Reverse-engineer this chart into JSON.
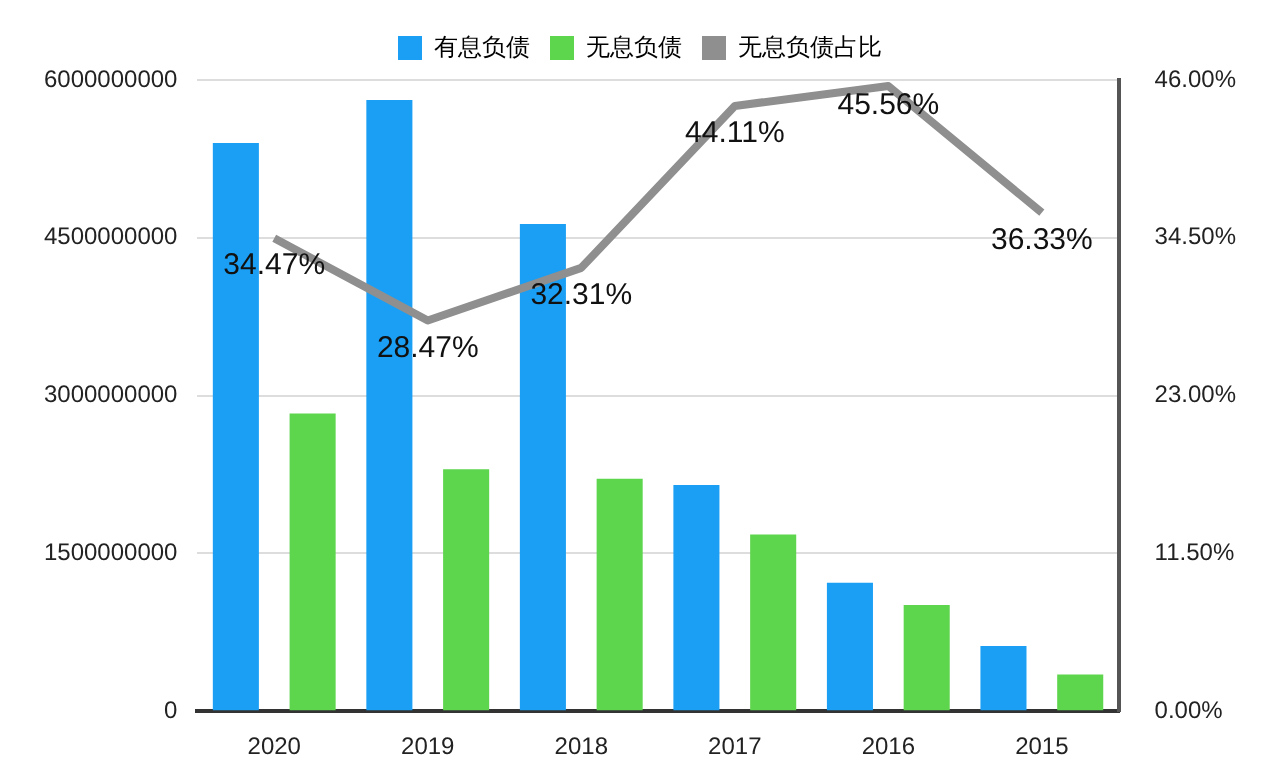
{
  "chart_data": {
    "type": "bar",
    "categories": [
      "2020",
      "2019",
      "2018",
      "2017",
      "2016",
      "2015"
    ],
    "series": [
      {
        "name": "有息负债",
        "color": "#1a9ff5",
        "values": [
          5400000000,
          5810000000,
          4630000000,
          2150000000,
          1220000000,
          620000000
        ]
      },
      {
        "name": "无息负债",
        "color": "#5dd54c",
        "values": [
          2830000000,
          2300000000,
          2210000000,
          1680000000,
          1010000000,
          350000000
        ]
      },
      {
        "name": "无息负债占比",
        "type": "line",
        "axis": "y2",
        "color": "#8f8f8f",
        "values": [
          34.47,
          28.47,
          32.31,
          44.11,
          45.56,
          36.33
        ],
        "value_labels": [
          "34.47%",
          "28.47%",
          "32.31%",
          "44.11%",
          "45.56%",
          "36.33%"
        ]
      }
    ],
    "ylim": [
      0,
      6000000000
    ],
    "yticks": [
      0,
      1500000000,
      3000000000,
      4500000000,
      6000000000
    ],
    "y2lim": [
      0,
      46
    ],
    "y2ticks": [
      {
        "value": 0,
        "label": "0.00%"
      },
      {
        "value": 11.5,
        "label": "11.50%"
      },
      {
        "value": 23,
        "label": "23.00%"
      },
      {
        "value": 34.5,
        "label": "34.50%"
      },
      {
        "value": 46,
        "label": "46.00%"
      }
    ],
    "grid": "y",
    "legend": "top",
    "marker": "none",
    "line_style": "solid"
  }
}
